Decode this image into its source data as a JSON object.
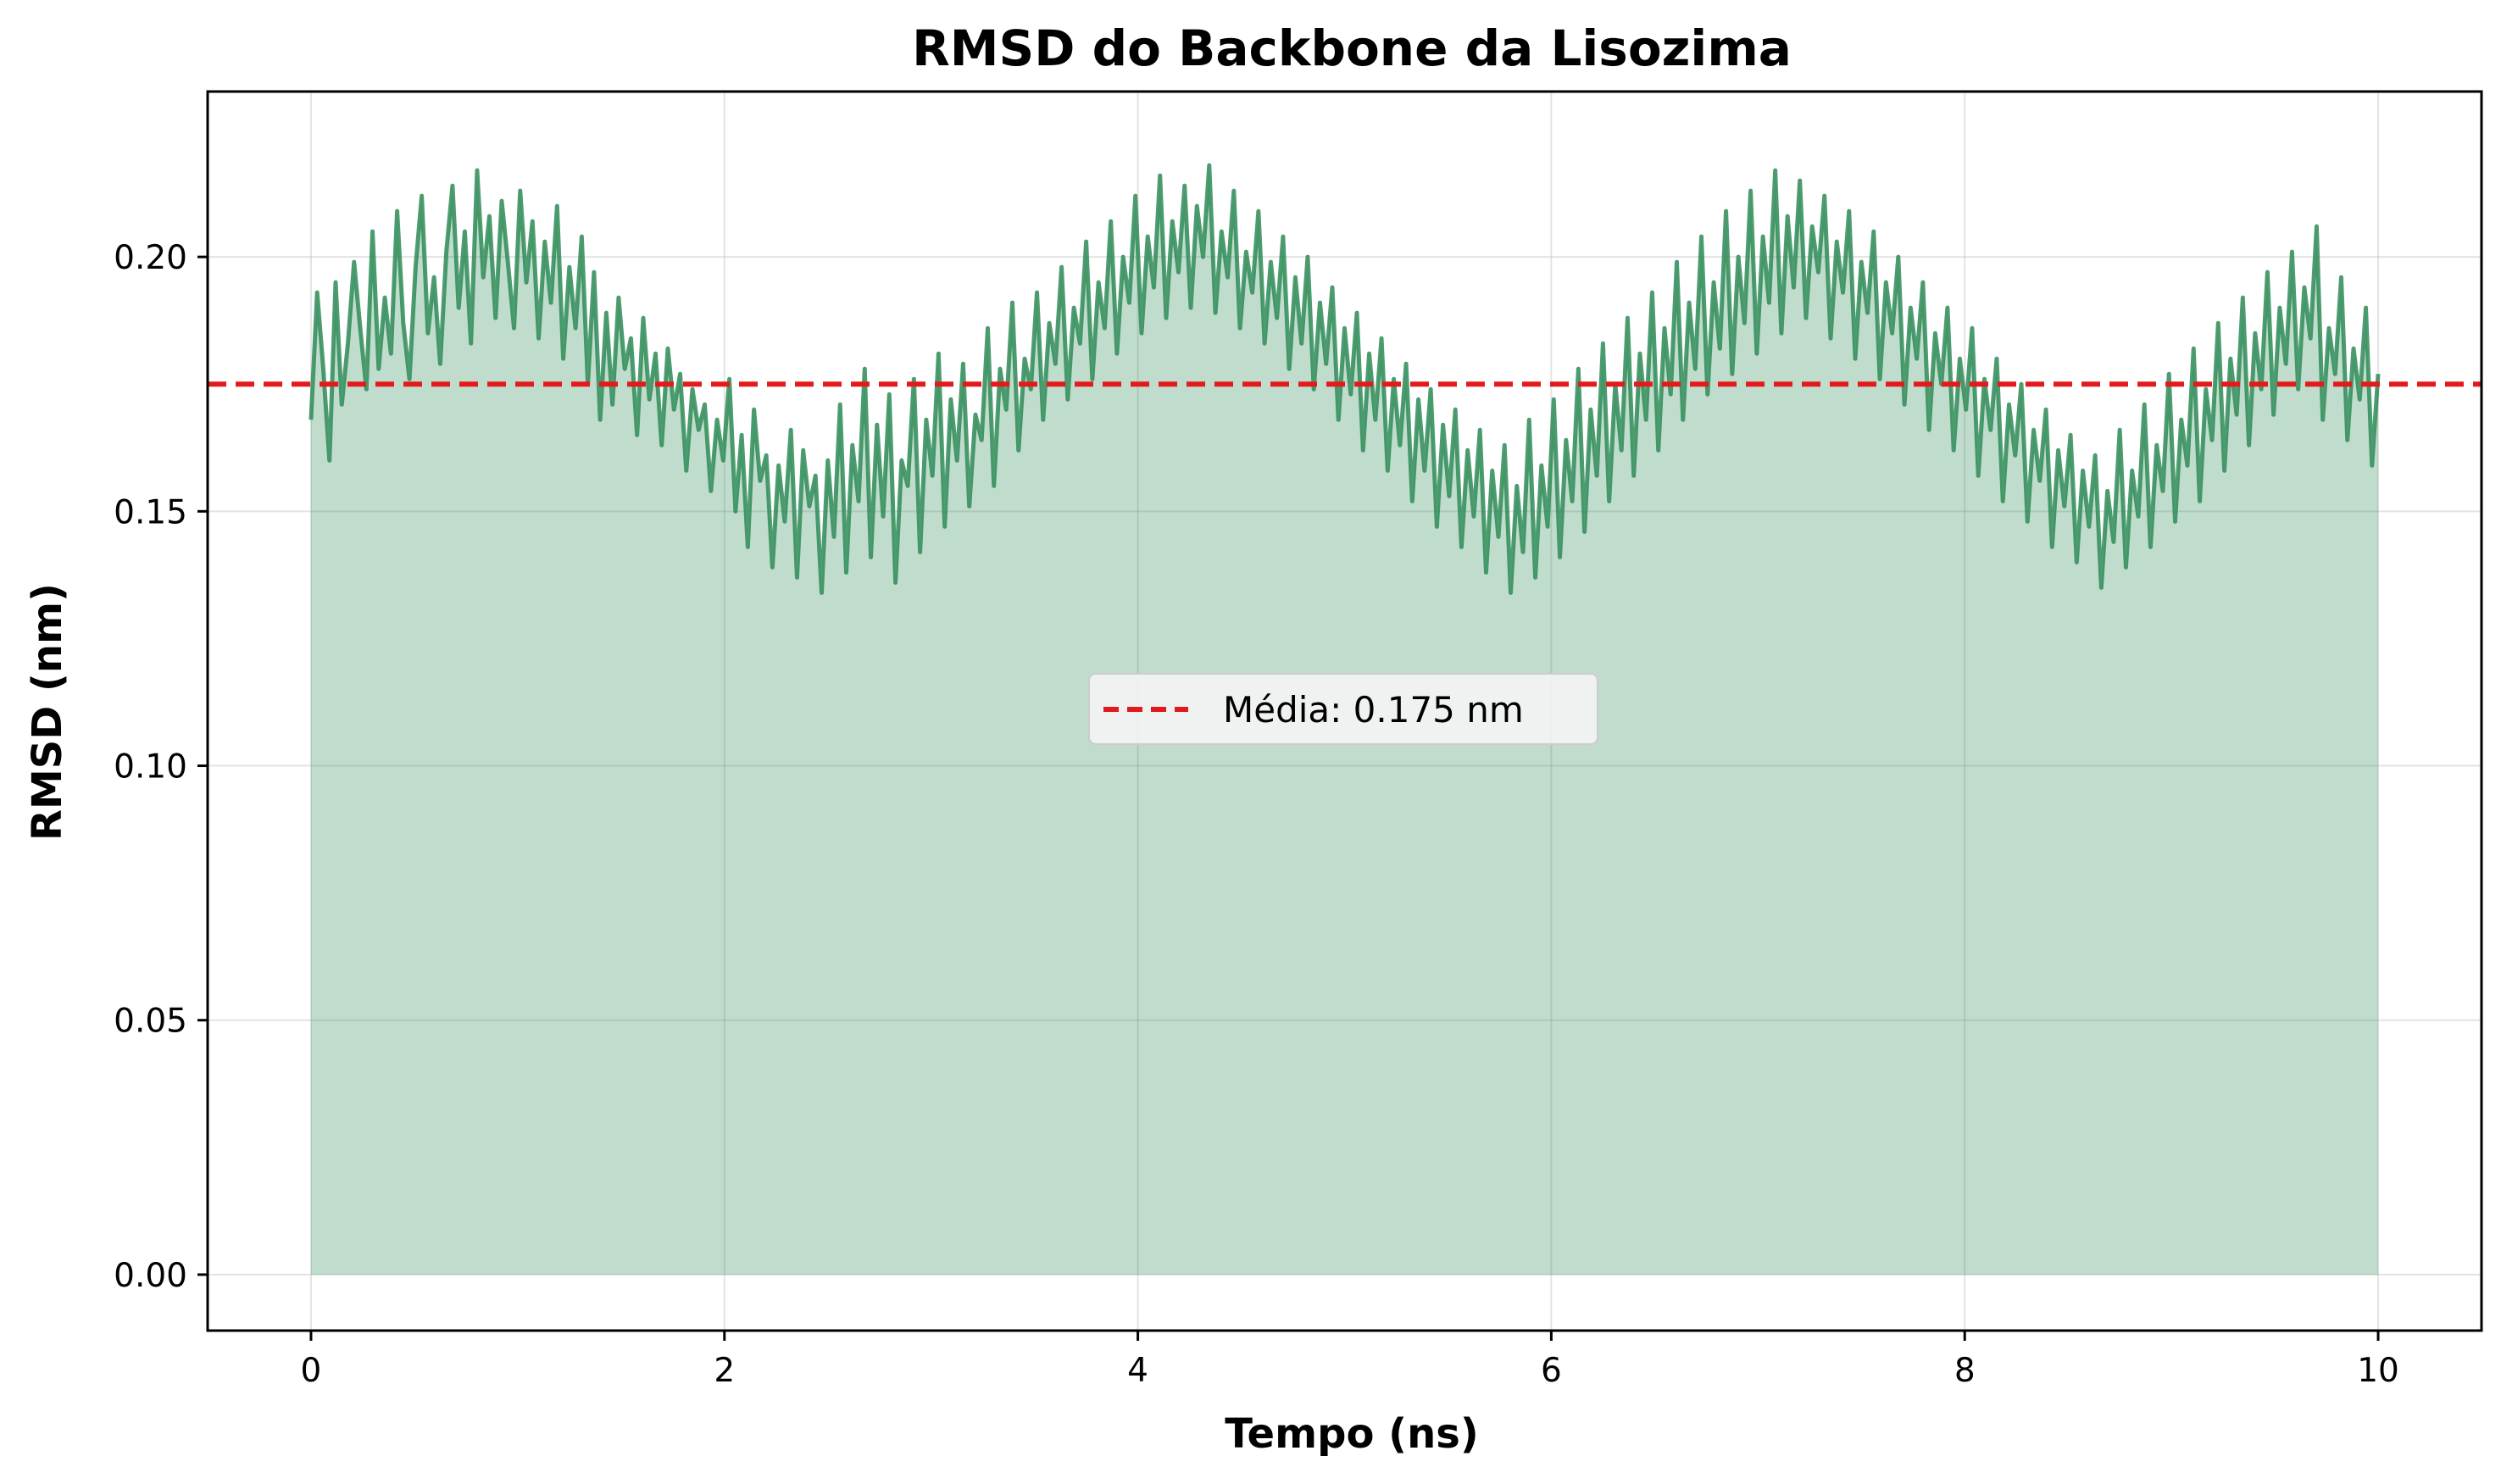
{
  "chart_data": {
    "type": "area",
    "title": "RMSD do Backbone da Lisozima",
    "xlabel": "Tempo (ns)",
    "ylabel": "RMSD (nm)",
    "xlim": [
      -0.5,
      10.5
    ],
    "ylim": [
      -0.011,
      0.2325
    ],
    "x_ticks": [
      0,
      2,
      4,
      6,
      8,
      10
    ],
    "x_tick_labels": [
      "0",
      "2",
      "4",
      "6",
      "8",
      "10"
    ],
    "y_ticks": [
      0.0,
      0.05,
      0.1,
      0.15,
      0.2
    ],
    "y_tick_labels": [
      "0.00",
      "0.05",
      "0.10",
      "0.15",
      "0.20"
    ],
    "grid": true,
    "legend_position": "center",
    "series": [
      {
        "x_start": 0,
        "x_end": 10,
        "color": "#2e8b57",
        "values": [
          0.168,
          0.193,
          0.178,
          0.16,
          0.195,
          0.171,
          0.183,
          0.199,
          0.186,
          0.174,
          0.205,
          0.178,
          0.192,
          0.181,
          0.209,
          0.187,
          0.176,
          0.198,
          0.212,
          0.185,
          0.196,
          0.179,
          0.201,
          0.214,
          0.19,
          0.205,
          0.183,
          0.217,
          0.196,
          0.208,
          0.188,
          0.211,
          0.199,
          0.186,
          0.213,
          0.195,
          0.207,
          0.184,
          0.203,
          0.191,
          0.21,
          0.18,
          0.198,
          0.186,
          0.204,
          0.175,
          0.197,
          0.168,
          0.189,
          0.171,
          0.192,
          0.178,
          0.184,
          0.165,
          0.188,
          0.172,
          0.181,
          0.163,
          0.182,
          0.17,
          0.177,
          0.158,
          0.174,
          0.166,
          0.171,
          0.154,
          0.168,
          0.16,
          0.176,
          0.15,
          0.165,
          0.143,
          0.17,
          0.156,
          0.161,
          0.139,
          0.159,
          0.148,
          0.166,
          0.137,
          0.162,
          0.151,
          0.157,
          0.134,
          0.16,
          0.145,
          0.171,
          0.138,
          0.163,
          0.152,
          0.178,
          0.141,
          0.167,
          0.149,
          0.173,
          0.136,
          0.16,
          0.155,
          0.176,
          0.142,
          0.168,
          0.157,
          0.181,
          0.147,
          0.172,
          0.16,
          0.179,
          0.151,
          0.169,
          0.164,
          0.186,
          0.155,
          0.178,
          0.17,
          0.191,
          0.162,
          0.18,
          0.174,
          0.193,
          0.168,
          0.187,
          0.179,
          0.198,
          0.172,
          0.19,
          0.183,
          0.203,
          0.176,
          0.195,
          0.186,
          0.207,
          0.181,
          0.2,
          0.191,
          0.212,
          0.185,
          0.204,
          0.194,
          0.216,
          0.188,
          0.207,
          0.197,
          0.214,
          0.19,
          0.21,
          0.2,
          0.218,
          0.189,
          0.205,
          0.196,
          0.213,
          0.186,
          0.201,
          0.193,
          0.209,
          0.183,
          0.199,
          0.188,
          0.204,
          0.178,
          0.196,
          0.183,
          0.2,
          0.174,
          0.191,
          0.179,
          0.194,
          0.168,
          0.186,
          0.173,
          0.189,
          0.162,
          0.181,
          0.168,
          0.184,
          0.158,
          0.176,
          0.163,
          0.179,
          0.152,
          0.172,
          0.158,
          0.174,
          0.147,
          0.167,
          0.153,
          0.17,
          0.143,
          0.162,
          0.149,
          0.166,
          0.138,
          0.158,
          0.145,
          0.163,
          0.134,
          0.155,
          0.142,
          0.168,
          0.137,
          0.159,
          0.147,
          0.172,
          0.141,
          0.164,
          0.152,
          0.178,
          0.146,
          0.17,
          0.157,
          0.183,
          0.152,
          0.175,
          0.162,
          0.188,
          0.157,
          0.181,
          0.168,
          0.193,
          0.162,
          0.186,
          0.173,
          0.199,
          0.168,
          0.191,
          0.178,
          0.204,
          0.173,
          0.195,
          0.182,
          0.209,
          0.177,
          0.2,
          0.187,
          0.213,
          0.181,
          0.204,
          0.191,
          0.217,
          0.185,
          0.208,
          0.194,
          0.215,
          0.188,
          0.206,
          0.197,
          0.212,
          0.184,
          0.203,
          0.193,
          0.209,
          0.18,
          0.199,
          0.189,
          0.205,
          0.176,
          0.195,
          0.185,
          0.2,
          0.171,
          0.19,
          0.18,
          0.195,
          0.166,
          0.185,
          0.175,
          0.19,
          0.162,
          0.18,
          0.17,
          0.186,
          0.157,
          0.176,
          0.166,
          0.18,
          0.152,
          0.171,
          0.161,
          0.175,
          0.148,
          0.166,
          0.156,
          0.17,
          0.143,
          0.162,
          0.151,
          0.165,
          0.14,
          0.158,
          0.147,
          0.161,
          0.135,
          0.154,
          0.144,
          0.166,
          0.139,
          0.158,
          0.149,
          0.171,
          0.143,
          0.163,
          0.154,
          0.177,
          0.148,
          0.168,
          0.159,
          0.182,
          0.152,
          0.174,
          0.164,
          0.187,
          0.158,
          0.18,
          0.169,
          0.192,
          0.163,
          0.185,
          0.174,
          0.197,
          0.169,
          0.19,
          0.179,
          0.201,
          0.174,
          0.194,
          0.184,
          0.206,
          0.168,
          0.186,
          0.177,
          0.196,
          0.164,
          0.182,
          0.172,
          0.19,
          0.159,
          0.177
        ]
      }
    ],
    "mean_line": {
      "value": 0.175,
      "color": "#e31a1c",
      "label": "Média: 0.175 nm"
    }
  }
}
